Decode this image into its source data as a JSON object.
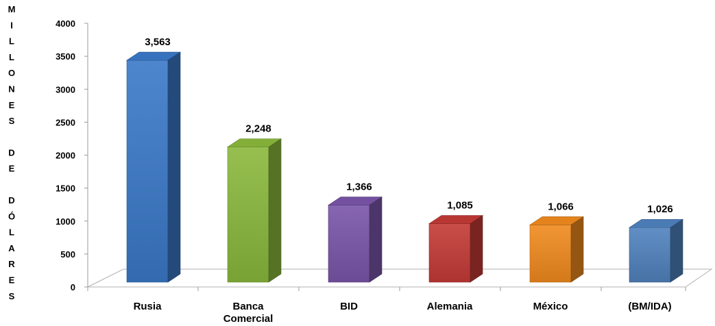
{
  "chart_data": {
    "type": "bar",
    "title": "",
    "xlabel": "",
    "ylabel": "MILLONES DE DÓLARES",
    "ylim": [
      0,
      4000
    ],
    "yticks": [
      0,
      500,
      1000,
      1500,
      2000,
      2500,
      3000,
      3500,
      4000
    ],
    "categories": [
      "Rusia",
      "Banca Comercial",
      "BID",
      "Alemania",
      "México",
      "(BM/IDA)"
    ],
    "values": [
      3563,
      2248,
      1366,
      1085,
      1066,
      1026
    ],
    "data_labels": [
      "3,563",
      "2,248",
      "1,366",
      "1,085",
      "1,066",
      "1,026"
    ],
    "colors": [
      "#3a78c8",
      "#8ab83c",
      "#7a55a8",
      "#c33a36",
      "#f08a1e",
      "#4f81bd"
    ],
    "grid": false,
    "legend": "none",
    "style": "3d-column"
  }
}
